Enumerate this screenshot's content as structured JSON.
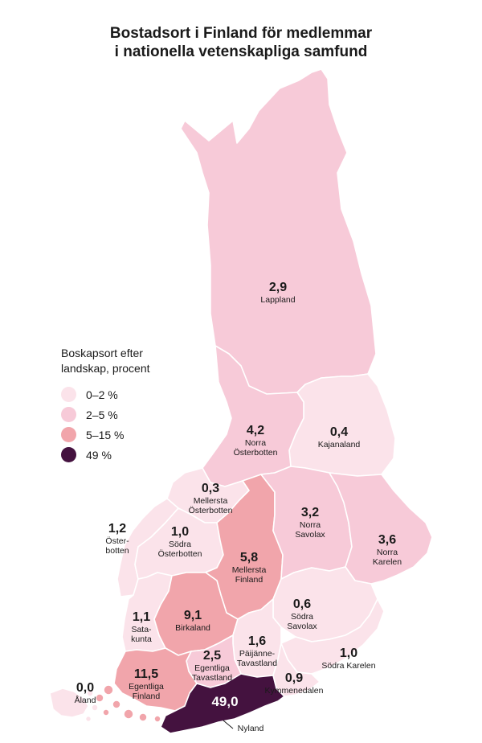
{
  "title": {
    "line1": "Bostadsort i Finland för medlemmar",
    "line2": "i nationella vetenskapliga samfund"
  },
  "legend": {
    "title_line1": "Boskapsort efter",
    "title_line2": "landskap, procent",
    "items": [
      {
        "label": "0–2 %",
        "color": "#fbe3ea"
      },
      {
        "label": "2–5 %",
        "color": "#f7cad8"
      },
      {
        "label": "5–15 %",
        "color": "#f1a5ab"
      },
      {
        "label": "49 %",
        "color": "#44123f"
      }
    ]
  },
  "regions": [
    {
      "id": "lappland",
      "value": "2,9",
      "name": [
        "Lappland"
      ],
      "class": "2–5 %"
    },
    {
      "id": "kajanaland",
      "value": "0,4",
      "name": [
        "Kajanaland"
      ],
      "class": "0–2 %"
    },
    {
      "id": "norra-osterbotten",
      "value": "4,2",
      "name": [
        "Norra",
        "Österbotten"
      ],
      "class": "2–5 %"
    },
    {
      "id": "mellersta-osterbotten",
      "value": "0,3",
      "name": [
        "Mellersta",
        "Österbotten"
      ],
      "class": "0–2 %"
    },
    {
      "id": "osterbotten",
      "value": "1,2",
      "name": [
        "Öster-",
        "botten"
      ],
      "class": "0–2 %"
    },
    {
      "id": "sodra-osterbotten",
      "value": "1,0",
      "name": [
        "Södra",
        "Österbotten"
      ],
      "class": "0–2 %"
    },
    {
      "id": "mellersta-finland",
      "value": "5,8",
      "name": [
        "Mellersta",
        "Finland"
      ],
      "class": "5–15 %"
    },
    {
      "id": "norra-savolax",
      "value": "3,2",
      "name": [
        "Norra",
        "Savolax"
      ],
      "class": "2–5 %"
    },
    {
      "id": "norra-karelen",
      "value": "3,6",
      "name": [
        "Norra",
        "Karelen"
      ],
      "class": "2–5 %"
    },
    {
      "id": "satakunta",
      "value": "1,1",
      "name": [
        "Sata-",
        "kunta"
      ],
      "class": "0–2 %"
    },
    {
      "id": "birkaland",
      "value": "9,1",
      "name": [
        "Birkaland"
      ],
      "class": "5–15 %"
    },
    {
      "id": "sodra-savolax",
      "value": "0,6",
      "name": [
        "Södra",
        "Savolax"
      ],
      "class": "0–2 %"
    },
    {
      "id": "paijanne-tavastland",
      "value": "1,6",
      "name": [
        "Päijänne-",
        "Tavastland"
      ],
      "class": "0–2 %"
    },
    {
      "id": "egentliga-tavastland",
      "value": "2,5",
      "name": [
        "Egentliga",
        "Tavastland"
      ],
      "class": "2–5 %"
    },
    {
      "id": "sodra-karelen",
      "value": "1,0",
      "name": [
        "Södra Karelen"
      ],
      "class": "0–2 %"
    },
    {
      "id": "kymmenedalen",
      "value": "0,9",
      "name": [
        "Kymmenedalen"
      ],
      "class": "0–2 %"
    },
    {
      "id": "egentliga-finland",
      "value": "11,5",
      "name": [
        "Egentliga",
        "Finland"
      ],
      "class": "5–15 %"
    },
    {
      "id": "aland",
      "value": "0,0",
      "name": [
        "Åland"
      ],
      "class": "0–2 %"
    },
    {
      "id": "nyland",
      "value": "49,0",
      "name": [
        "Nyland"
      ],
      "class": "49 %"
    }
  ]
}
